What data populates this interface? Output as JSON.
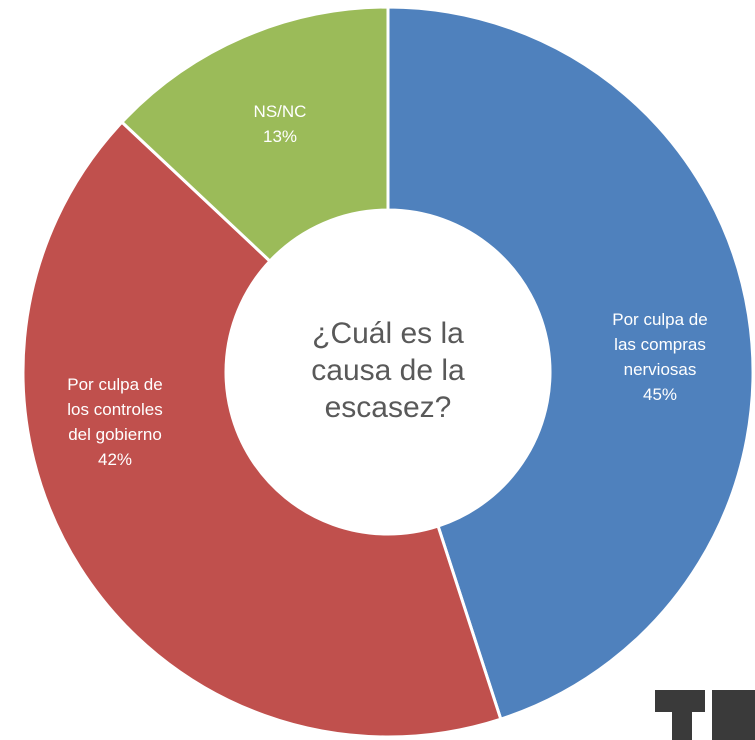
{
  "chart_data": {
    "type": "donut",
    "center_text": [
      "¿Cuál es la",
      "causa de la",
      "escasez?"
    ],
    "categories": [
      [
        "Por culpa de",
        "las compras",
        "nerviosas"
      ],
      [
        "Por culpa de",
        "los controles",
        "del gobierno"
      ],
      [
        "NS/NC"
      ]
    ],
    "values": [
      45,
      42,
      13
    ],
    "value_labels": [
      "45%",
      "42%",
      "13%"
    ],
    "colors": [
      "#4f81bd",
      "#c0504d",
      "#9bbb59"
    ]
  }
}
